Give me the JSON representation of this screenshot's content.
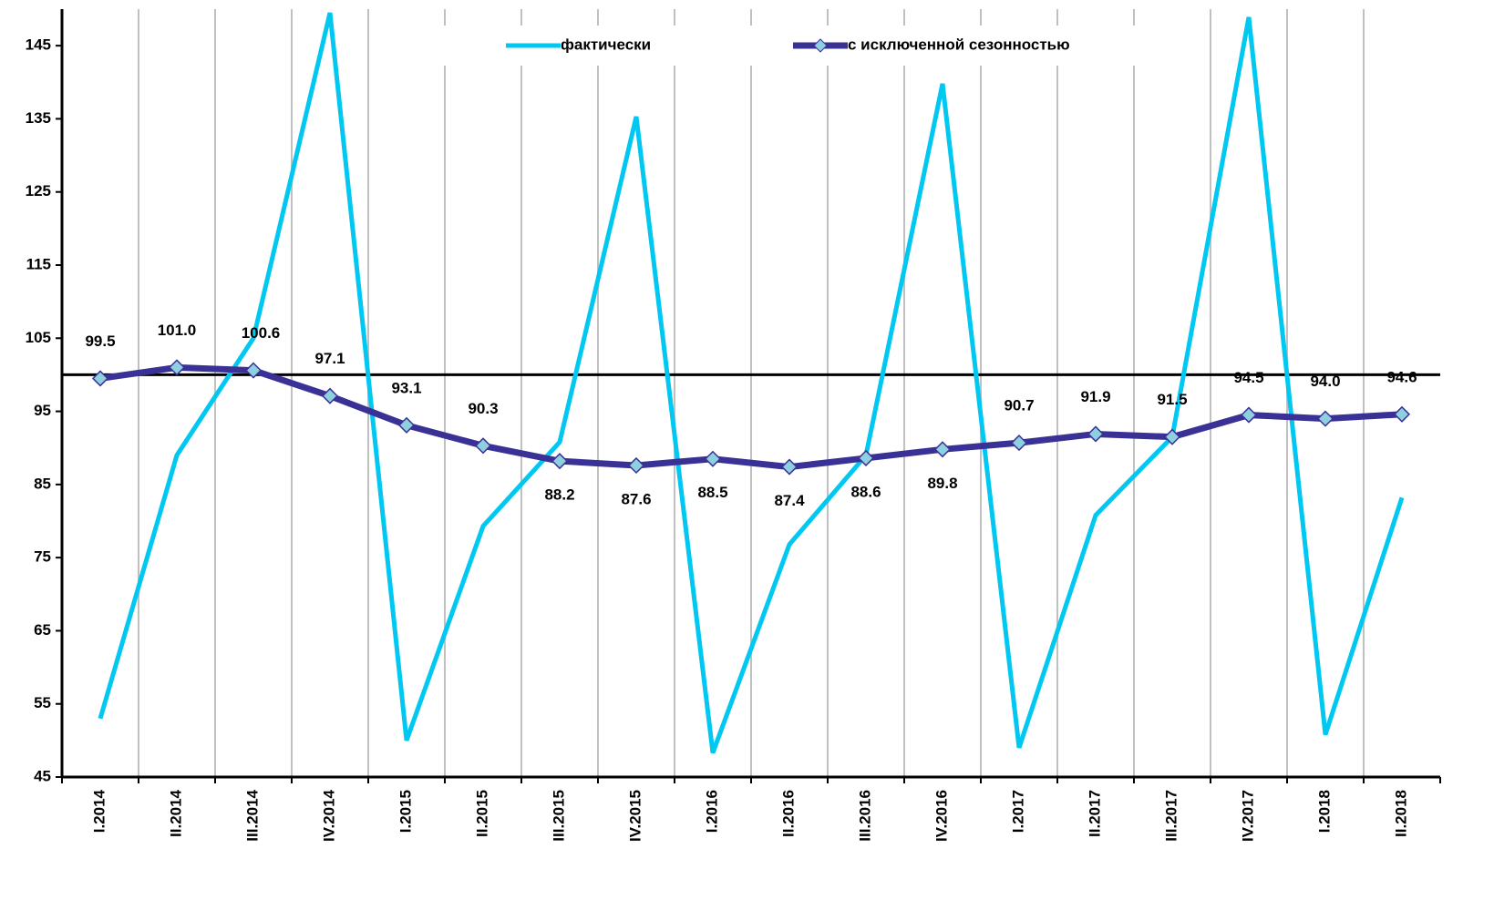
{
  "chart_data": {
    "type": "line",
    "categories": [
      "I.2014",
      "II.2014",
      "III.2014",
      "IV.2014",
      "I.2015",
      "II.2015",
      "III.2015",
      "IV.2015",
      "I.2016",
      "II.2016",
      "III.2016",
      "IV.2016",
      "I.2017",
      "II.2017",
      "III.2017",
      "IV.2017",
      "I.2018",
      "II.2018"
    ],
    "series": [
      {
        "name": "фактически",
        "color": "#00c8f0",
        "values": [
          53,
          89,
          105,
          149.5,
          50,
          79.3,
          90.8,
          135.3,
          48.3,
          76.8,
          89,
          139.8,
          49,
          80.8,
          91.5,
          148.9,
          50.8,
          83.2
        ]
      },
      {
        "name": "с исключенной сезонностью",
        "color": "#3a3196",
        "marker_color": "#8ecfe0",
        "values": [
          99.5,
          101.0,
          100.6,
          97.1,
          93.1,
          90.3,
          88.2,
          87.6,
          88.5,
          87.4,
          88.6,
          89.8,
          90.7,
          91.9,
          91.5,
          94.5,
          94.0,
          94.6
        ],
        "value_labels": [
          "99.5",
          "101.0",
          "100.6",
          "97.1",
          "93.1",
          "90.3",
          "88.2",
          "87.6",
          "88.5",
          "87.4",
          "88.6",
          "89.8",
          "90.7",
          "91.9",
          "91.5",
          "94.5",
          "94.0",
          "94.6"
        ]
      }
    ],
    "ylim": [
      45,
      150
    ],
    "yticks": [
      45,
      55,
      65,
      75,
      85,
      95,
      105,
      115,
      125,
      135,
      145
    ],
    "reference_line": 100,
    "grid": true,
    "legend": "top"
  }
}
